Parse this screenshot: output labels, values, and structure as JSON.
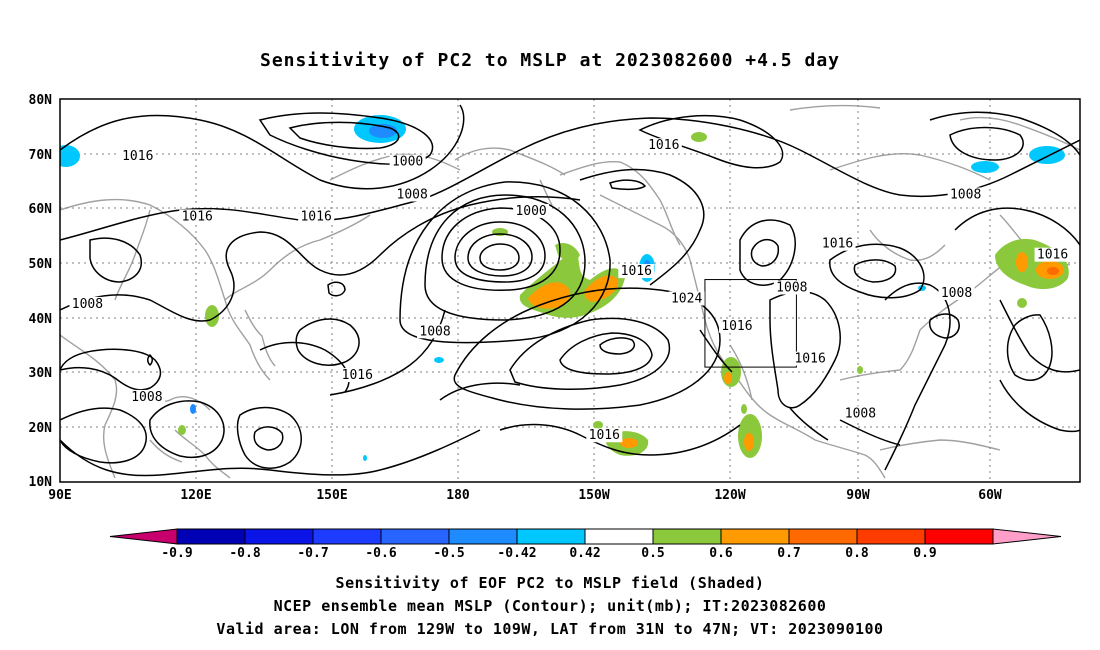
{
  "title": "Sensitivity of PC2 to MSLP at 2023082600 +4.5 day",
  "lat_labels": [
    "80N",
    "70N",
    "60N",
    "50N",
    "40N",
    "30N",
    "20N",
    "10N"
  ],
  "lon_labels": [
    "90E",
    "120E",
    "150E",
    "180",
    "150W",
    "120W",
    "90W",
    "60W"
  ],
  "contour_labels": [
    {
      "text": "1016",
      "lon": 107,
      "lat": 69
    },
    {
      "text": "1000",
      "lon": 166,
      "lat": 68
    },
    {
      "text": "1008",
      "lon": 167,
      "lat": 62
    },
    {
      "text": "1016",
      "lon": 120,
      "lat": 58
    },
    {
      "text": "1016",
      "lon": 146,
      "lat": 58
    },
    {
      "text": "1000",
      "lon": -167,
      "lat": 59
    },
    {
      "text": "1016",
      "lon": -138,
      "lat": 71
    },
    {
      "text": "1008",
      "lon": -72,
      "lat": 62
    },
    {
      "text": "1016",
      "lon": -100,
      "lat": 53
    },
    {
      "text": "1016",
      "lon": -53,
      "lat": 51
    },
    {
      "text": "1016",
      "lon": -144,
      "lat": 48
    },
    {
      "text": "1024",
      "lon": -133,
      "lat": 43
    },
    {
      "text": "1008",
      "lon": -110,
      "lat": 45
    },
    {
      "text": "1008",
      "lon": -74,
      "lat": 44
    },
    {
      "text": "1008",
      "lon": 96,
      "lat": 42
    },
    {
      "text": "1016",
      "lon": -122,
      "lat": 38
    },
    {
      "text": "1008",
      "lon": 172,
      "lat": 37
    },
    {
      "text": "1016",
      "lon": -106,
      "lat": 32
    },
    {
      "text": "1016",
      "lon": 155,
      "lat": 29
    },
    {
      "text": "1008",
      "lon": 109,
      "lat": 25
    },
    {
      "text": "1008",
      "lon": -95,
      "lat": 22
    },
    {
      "text": "1016",
      "lon": -151,
      "lat": 18
    }
  ],
  "valid_box": {
    "lon_min": -129,
    "lon_max": -109,
    "lat_min": 31,
    "lat_max": 47
  },
  "colorbar": {
    "ticks": [
      "-0.9",
      "-0.8",
      "-0.7",
      "-0.6",
      "-0.5",
      "-0.42",
      "0.42",
      "0.5",
      "0.6",
      "0.7",
      "0.8",
      "0.9"
    ],
    "colors": [
      "#c8006e",
      "#0000b4",
      "#0a14e6",
      "#1e3cff",
      "#2864ff",
      "#1e8cff",
      "#00c8ff",
      "#ffffff",
      "#8cc83c",
      "#ff9a00",
      "#ff6a00",
      "#ff3c00",
      "#ff0000",
      "#ff9ec8"
    ]
  },
  "caption": [
    "Sensitivity of EOF PC2 to MSLP field (Shaded)",
    "NCEP ensemble mean MSLP (Contour); unit(mb); IT:2023082600",
    "Valid area: LON from 129W to 109W, LAT from 31N to 47N; VT: 2023090100"
  ]
}
